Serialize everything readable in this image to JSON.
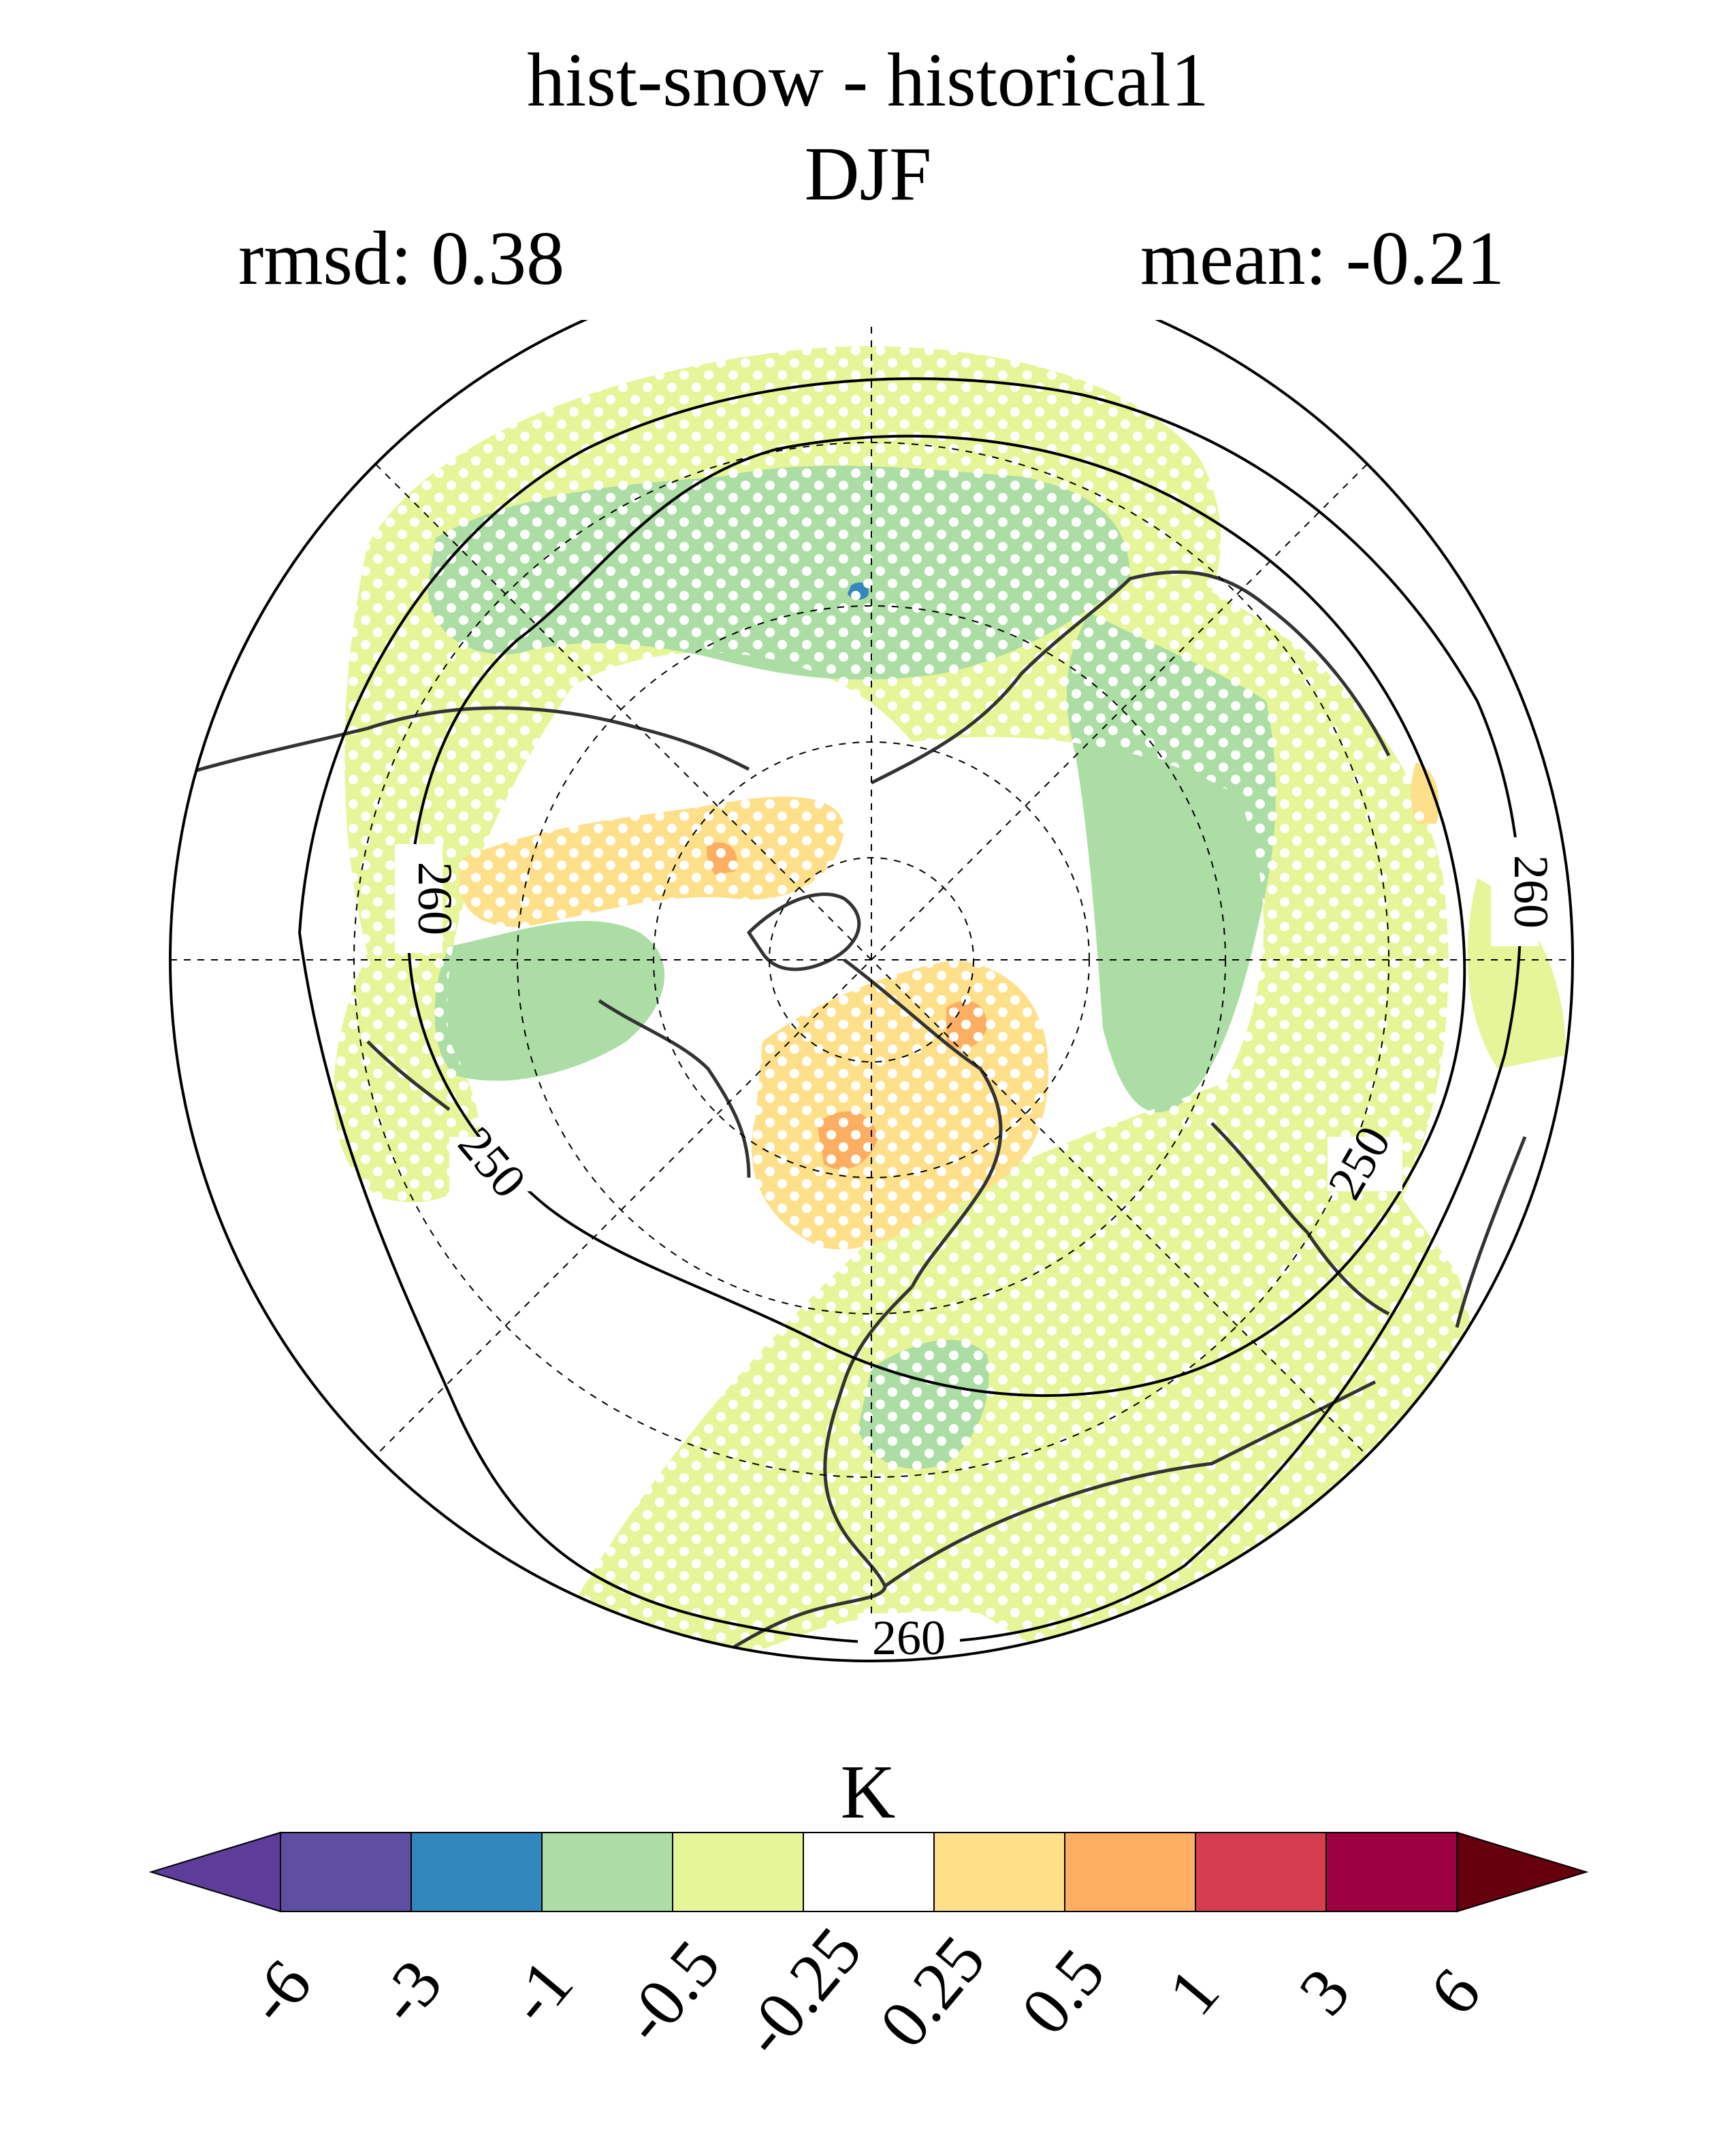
{
  "title": "hist-snow - historical1",
  "season": "DJF",
  "stats": {
    "rmsd": "rmsd: 0.38",
    "mean": "mean: -0.21"
  },
  "map": {
    "projection": "north-polar-stereographic",
    "contour_labels": [
      "260",
      "260",
      "260",
      "250",
      "250"
    ],
    "stippling": "white dots",
    "colors": {
      "cool_1": "#abdda4",
      "cool_05": "#e6f598",
      "warm_05": "#fee08b",
      "warm_1": "#fdae61",
      "blue": "#3288bd",
      "coast": "#333333"
    }
  },
  "colorbar": {
    "unit": "K",
    "ticks": [
      "-6",
      "-3",
      "-1",
      "-0.5",
      "-0.25",
      "0.25",
      "0.5",
      "1",
      "3",
      "6"
    ],
    "colors": [
      "#5e3c99",
      "#5e4fa2",
      "#3288bd",
      "#abdda4",
      "#e6f598",
      "#ffffff",
      "#fee08b",
      "#fdae61",
      "#d53e4f",
      "#9e0142",
      "#67000d"
    ]
  }
}
